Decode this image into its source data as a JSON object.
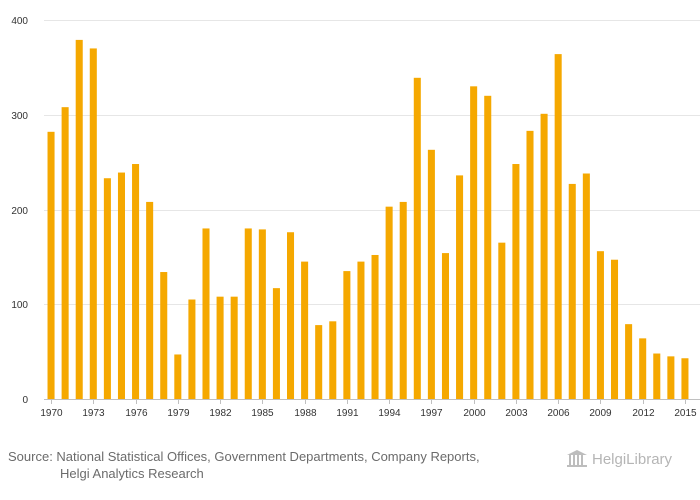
{
  "chart_data": {
    "type": "bar",
    "title": "",
    "xlabel": "",
    "ylabel": "",
    "ylim": [
      0,
      400
    ],
    "yticks": [
      0,
      100,
      200,
      300,
      400
    ],
    "xticks": [
      "1970",
      "1973",
      "1976",
      "1979",
      "1982",
      "1985",
      "1988",
      "1991",
      "1994",
      "1997",
      "2000",
      "2003",
      "2006",
      "2009",
      "2012",
      "2015"
    ],
    "categories": [
      "1970",
      "1971",
      "1972",
      "1973",
      "1974",
      "1975",
      "1976",
      "1977",
      "1978",
      "1979",
      "1980",
      "1981",
      "1982",
      "1983",
      "1984",
      "1985",
      "1986",
      "1987",
      "1988",
      "1989",
      "1990",
      "1991",
      "1992",
      "1993",
      "1994",
      "1995",
      "1996",
      "1997",
      "1998",
      "1999",
      "2000",
      "2001",
      "2002",
      "2003",
      "2004",
      "2005",
      "2006",
      "2007",
      "2008",
      "2009",
      "2010",
      "2011",
      "2012",
      "2013",
      "2014",
      "2015"
    ],
    "values": [
      282,
      308,
      379,
      370,
      233,
      239,
      248,
      208,
      134,
      47,
      105,
      180,
      108,
      108,
      180,
      179,
      117,
      176,
      145,
      78,
      82,
      135,
      145,
      152,
      203,
      208,
      339,
      263,
      154,
      236,
      330,
      320,
      165,
      248,
      283,
      301,
      364,
      227,
      238,
      156,
      147,
      79,
      64,
      48,
      45,
      43
    ],
    "color": "#f5a800",
    "grid": true,
    "legend": "none"
  },
  "footer": {
    "source_line1": "Source: National Statistical Offices, Government Departments, Company Reports,",
    "source_line2": "Helgi Analytics Research",
    "logo_text": "HelgiLibrary"
  }
}
